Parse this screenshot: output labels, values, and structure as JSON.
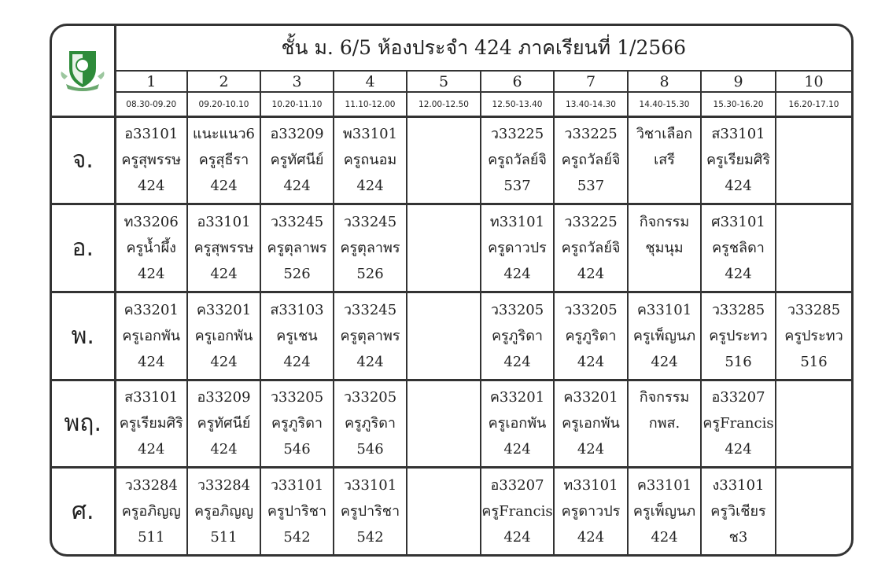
{
  "title": "ชั้น ม. 6/5 ห้องประจำ 424 ภาคเรียนที่ 1/2566",
  "logo": {
    "icon": "school-shield-logo",
    "color": "#2e8b3a"
  },
  "periods": [
    "1",
    "2",
    "3",
    "4",
    "5",
    "6",
    "7",
    "8",
    "9",
    "10"
  ],
  "times": [
    "08.30-09.20",
    "09.20-10.10",
    "10.20-11.10",
    "11.10-12.00",
    "12.00-12.50",
    "12.50-13.40",
    "13.40-14.30",
    "14.40-15.30",
    "15.30-16.20",
    "16.20-17.10"
  ],
  "days": [
    {
      "label": "จ.",
      "cells": [
        [
          "อ33101",
          "ครูสุพรรษ",
          "424"
        ],
        [
          "แนะแนว6",
          "ครูสุธีรา",
          "424"
        ],
        [
          "อ33209",
          "ครูทัศนีย์",
          "424"
        ],
        [
          "พ33101",
          "ครูถนอม",
          "424"
        ],
        [],
        [
          "ว33225",
          "ครูถวัลย์จิ",
          "537"
        ],
        [
          "ว33225",
          "ครูถวัลย์จิ",
          "537"
        ],
        [
          "วิชาเลือก",
          "เสรี",
          ""
        ],
        [
          "ส33101",
          "ครูเรียมศิริ",
          "424"
        ],
        []
      ]
    },
    {
      "label": "อ.",
      "cells": [
        [
          "ท33206",
          "ครูน้ำผึ้ง",
          "424"
        ],
        [
          "อ33101",
          "ครูสุพรรษ",
          "424"
        ],
        [
          "ว33245",
          "ครูตุลาพร",
          "526"
        ],
        [
          "ว33245",
          "ครูตุลาพร",
          "526"
        ],
        [],
        [
          "ท33101",
          "ครูดาวปร",
          "424"
        ],
        [
          "ว33225",
          "ครูถวัลย์จิ",
          "424"
        ],
        [
          "กิจกรรม",
          "ชุมนุม",
          ""
        ],
        [
          "ศ33101",
          "ครูชลิดา",
          "424"
        ],
        []
      ]
    },
    {
      "label": "พ.",
      "cells": [
        [
          "ค33201",
          "ครูเอกพัน",
          "424"
        ],
        [
          "ค33201",
          "ครูเอกพัน",
          "424"
        ],
        [
          "ส33103",
          "ครูเชน",
          "424"
        ],
        [
          "ว33245",
          "ครูตุลาพร",
          "424"
        ],
        [],
        [
          "ว33205",
          "ครูภูริดา",
          "424"
        ],
        [
          "ว33205",
          "ครูภูริดา",
          "424"
        ],
        [
          "ค33101",
          "ครูเพ็ญนภ",
          "424"
        ],
        [
          "ว33285",
          "ครูประทว",
          "516"
        ],
        [
          "ว33285",
          "ครูประทว",
          "516"
        ]
      ]
    },
    {
      "label": "พฤ.",
      "cells": [
        [
          "ส33101",
          "ครูเรียมศิริ",
          "424"
        ],
        [
          "อ33209",
          "ครูทัศนีย์",
          "424"
        ],
        [
          "ว33205",
          "ครูภูริดา",
          "546"
        ],
        [
          "ว33205",
          "ครูภูริดา",
          "546"
        ],
        [],
        [
          "ค33201",
          "ครูเอกพัน",
          "424"
        ],
        [
          "ค33201",
          "ครูเอกพัน",
          "424"
        ],
        [
          "กิจกรรม",
          "กพส.",
          ""
        ],
        [
          "อ33207",
          "ครูFrancis",
          "424"
        ],
        []
      ]
    },
    {
      "label": "ศ.",
      "cells": [
        [
          "ว33284",
          "ครูอภิญญ",
          "511"
        ],
        [
          "ว33284",
          "ครูอภิญญ",
          "511"
        ],
        [
          "ว33101",
          "ครูปาริชา",
          "542"
        ],
        [
          "ว33101",
          "ครูปาริชา",
          "542"
        ],
        [],
        [
          "อ33207",
          "ครูFrancis",
          "424"
        ],
        [
          "ท33101",
          "ครูดาวปร",
          "424"
        ],
        [
          "ค33101",
          "ครูเพ็ญนภ",
          "424"
        ],
        [
          "ง33101",
          "ครูวิเชียร",
          "ช3"
        ],
        []
      ]
    }
  ]
}
